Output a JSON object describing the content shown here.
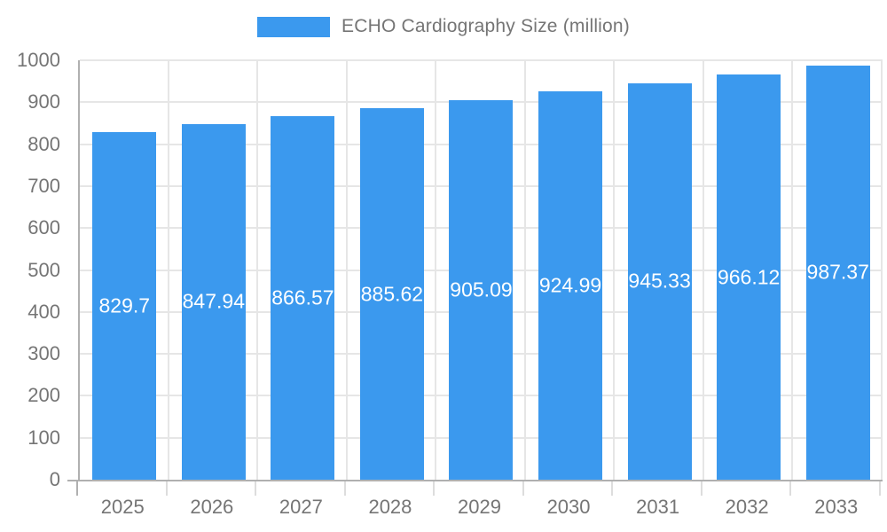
{
  "legend": {
    "label": "ECHO Cardiography Size (million)",
    "swatch_color": "#3b99ee"
  },
  "chart_data": {
    "type": "bar",
    "title": "",
    "xlabel": "",
    "ylabel": "",
    "categories": [
      "2025",
      "2026",
      "2027",
      "2028",
      "2029",
      "2030",
      "2031",
      "2032",
      "2033"
    ],
    "values": [
      829.7,
      847.94,
      866.57,
      885.62,
      905.09,
      924.99,
      945.33,
      966.12,
      987.37
    ],
    "series_name": "ECHO Cardiography Size (million)",
    "ylim": [
      0,
      1000
    ],
    "yticks": [
      0,
      100,
      200,
      300,
      400,
      500,
      600,
      700,
      800,
      900,
      1000
    ],
    "grid": true,
    "legend_position": "top",
    "bar_color": "#3b99ee",
    "value_label_color": "#ffffff",
    "axis_text_color": "#757575",
    "gridline_color": "#e6e6e6",
    "axis_line_color": "#b0b0b0"
  }
}
